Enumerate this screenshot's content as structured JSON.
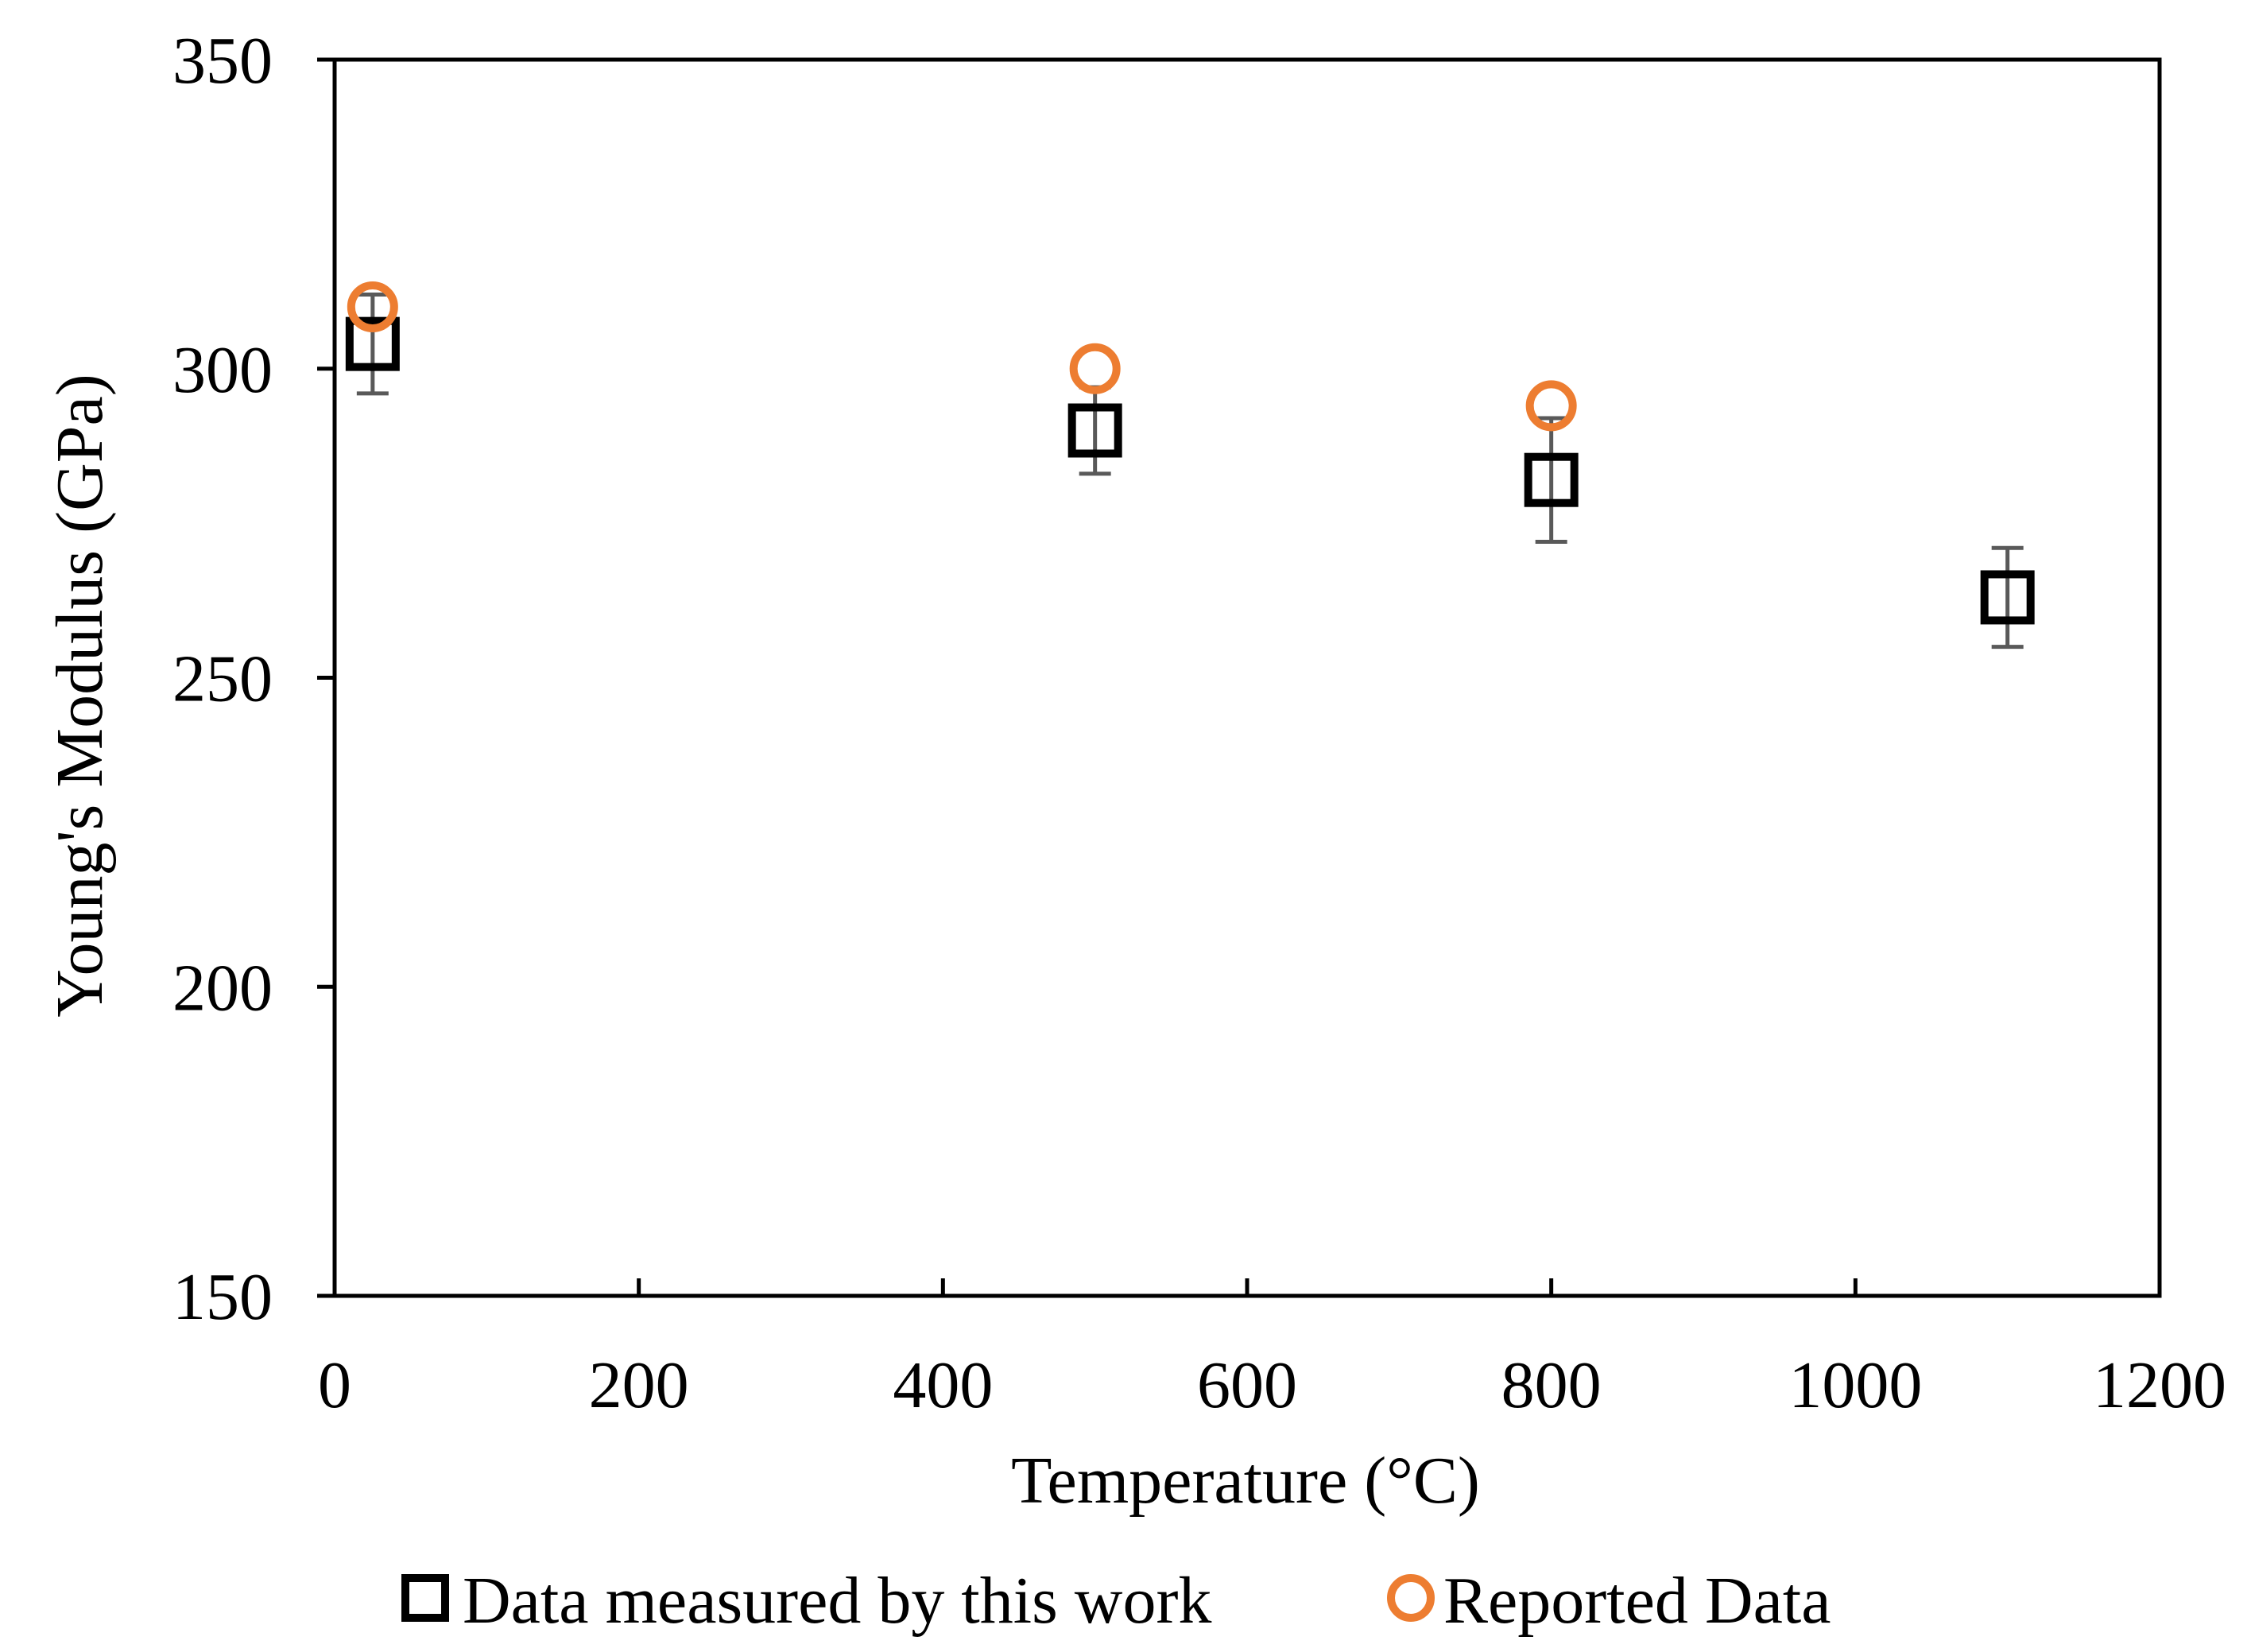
{
  "chart_data": {
    "type": "scatter",
    "title": "",
    "xlabel": "Temperature (°C)",
    "ylabel": "Young's Modulus (GPa)",
    "xlim": [
      0,
      1200
    ],
    "ylim": [
      150,
      350
    ],
    "xticks": [
      0,
      200,
      400,
      600,
      800,
      1000,
      1200
    ],
    "yticks": [
      150,
      200,
      250,
      300,
      350
    ],
    "xtick_labels": [
      "0",
      "200",
      "400",
      "600",
      "800",
      "1000",
      "1200"
    ],
    "ytick_labels": [
      "150",
      "200",
      "250",
      "300",
      "350"
    ],
    "grid": false,
    "legend_position": "bottom",
    "series": [
      {
        "name": "Data measured by this work",
        "marker": "square",
        "color": "#000000",
        "error_bar_color": "#595959",
        "x": [
          25,
          500,
          800,
          1100
        ],
        "y": [
          304,
          290,
          282,
          263
        ],
        "error": [
          8,
          7,
          10,
          8
        ]
      },
      {
        "name": "Reported Data",
        "marker": "circle",
        "color": "#ED7D31",
        "x": [
          25,
          500,
          800
        ],
        "y": [
          310,
          300,
          294
        ]
      }
    ]
  }
}
